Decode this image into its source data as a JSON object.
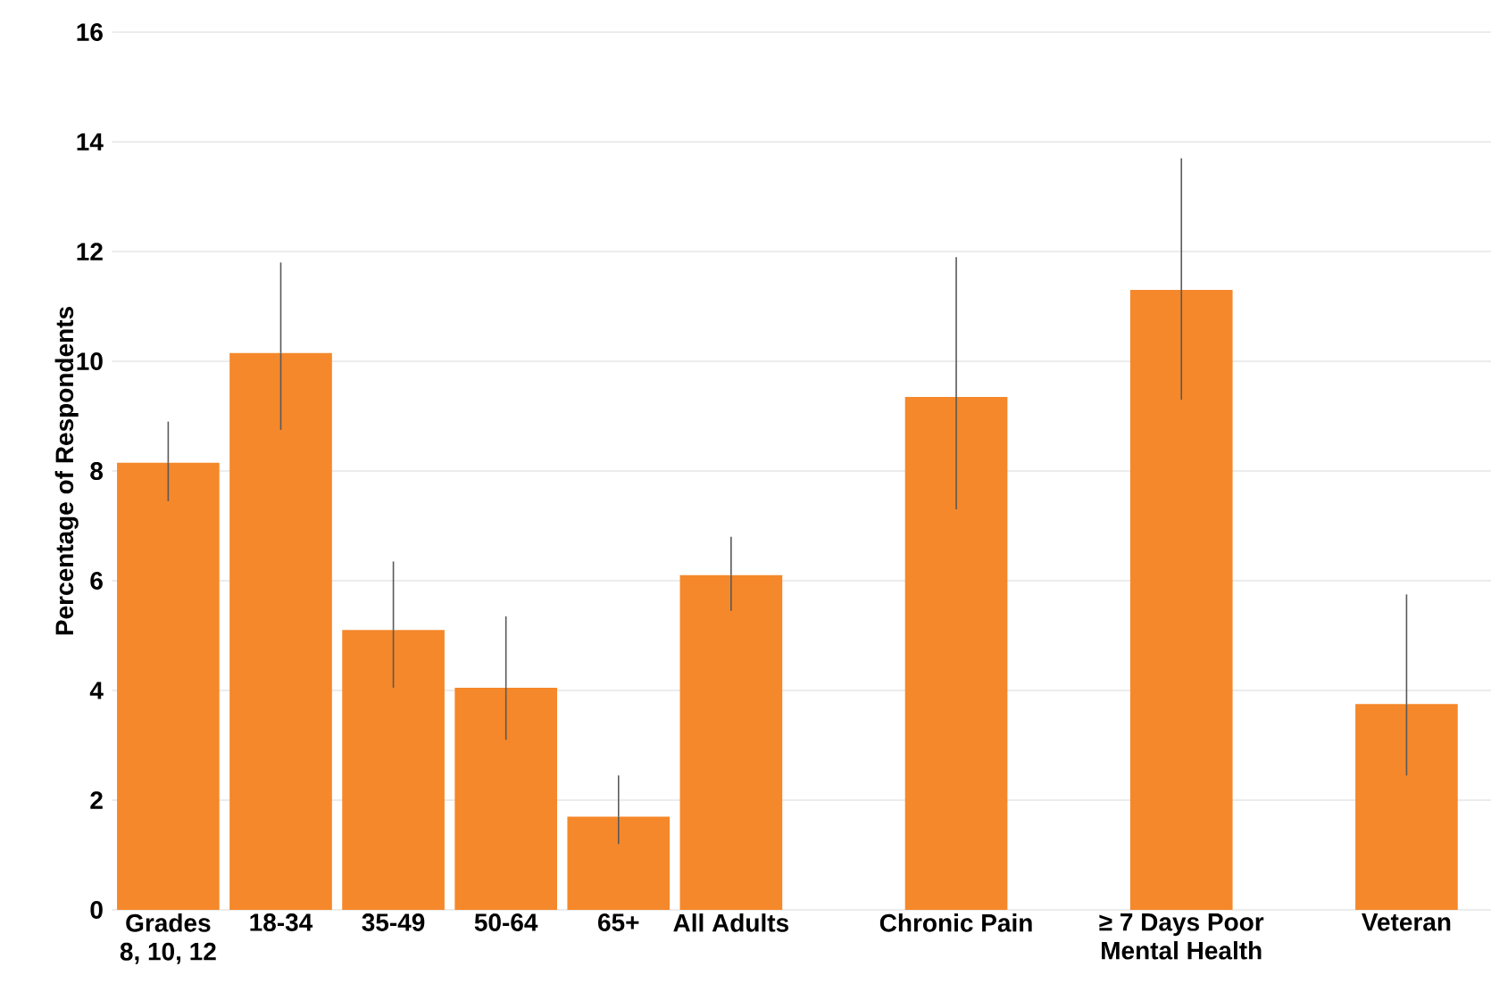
{
  "chart_data": {
    "type": "bar",
    "ylabel": "Percentage of Respondents",
    "categories": [
      "Grades 8, 10, 12",
      "18-34",
      "35-49",
      "50-64",
      "65+",
      "All Adults",
      null,
      "Chronic Pain",
      null,
      "≥ 7 Days Poor Mental Health",
      null,
      "Veteran"
    ],
    "values": [
      8.15,
      10.15,
      5.1,
      4.05,
      1.7,
      6.1,
      null,
      9.35,
      null,
      11.3,
      null,
      3.75
    ],
    "errors": [
      [
        7.45,
        8.9
      ],
      [
        8.75,
        11.8
      ],
      [
        4.05,
        6.35
      ],
      [
        3.1,
        5.35
      ],
      [
        1.2,
        2.45
      ],
      [
        5.45,
        6.8
      ],
      null,
      [
        7.3,
        11.9
      ],
      null,
      [
        9.3,
        13.7
      ],
      null,
      [
        2.45,
        5.75
      ]
    ],
    "color": "#f5882a",
    "ylim": [
      0,
      16
    ],
    "yticks": [
      0,
      2,
      4,
      6,
      8,
      10,
      12,
      14,
      16
    ],
    "grid": "y"
  }
}
